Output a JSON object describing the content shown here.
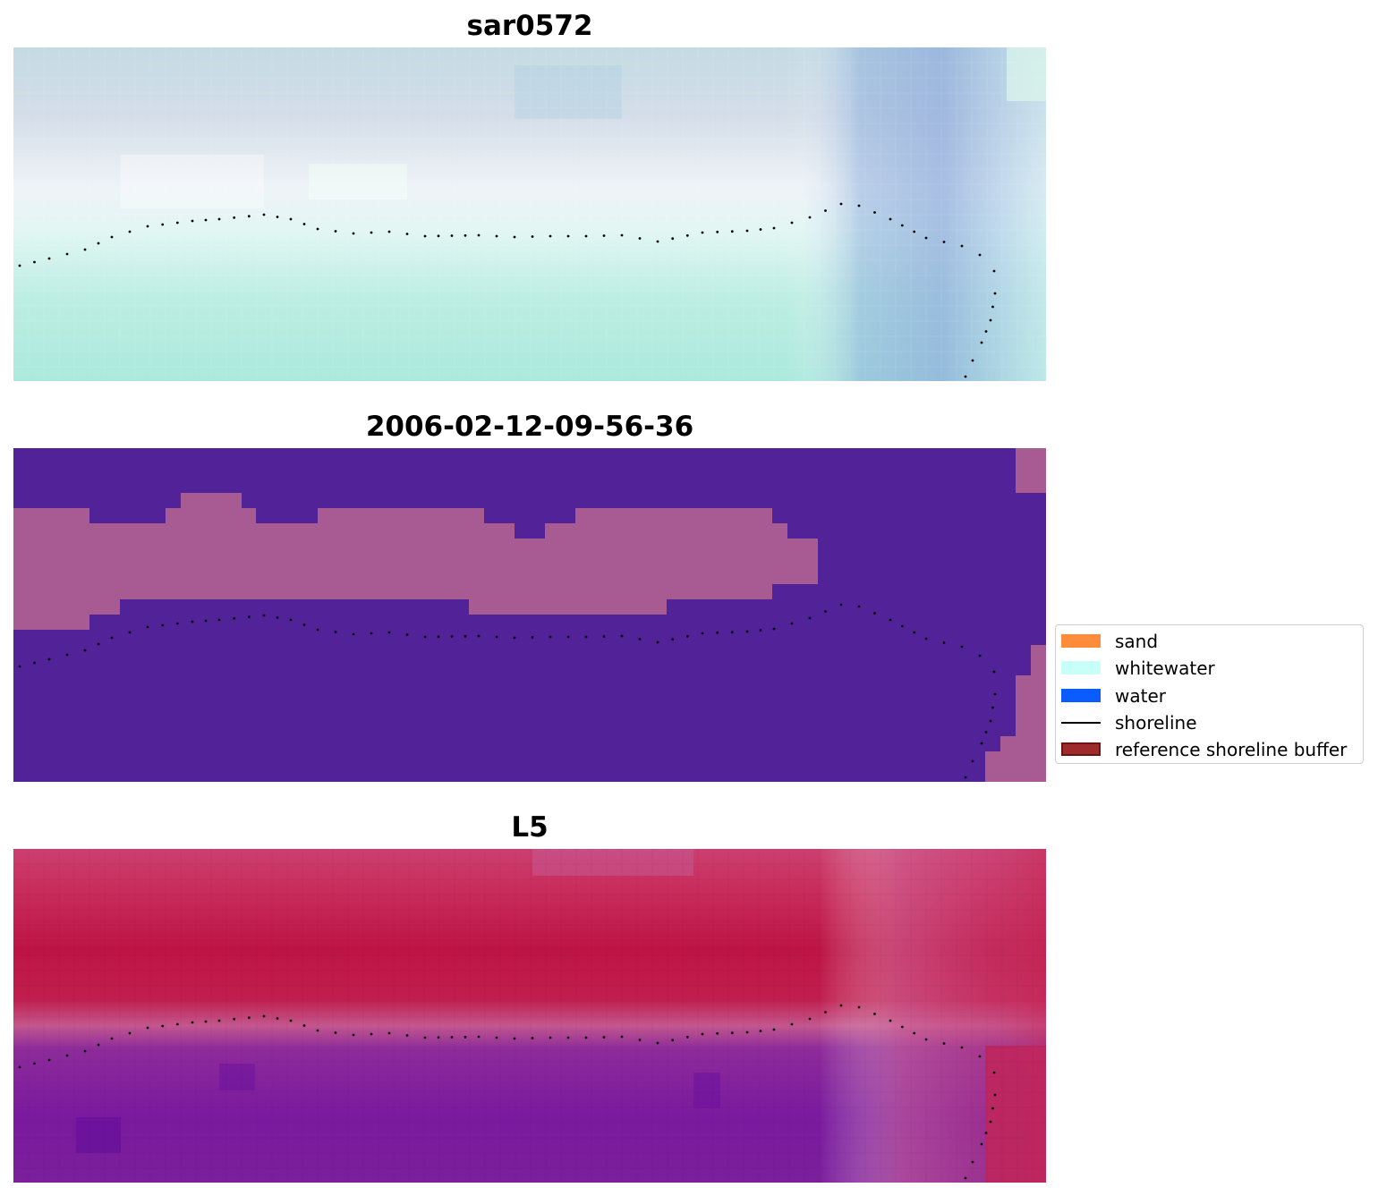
{
  "panels": [
    {
      "title": "sar0572",
      "image": "false-color-composite"
    },
    {
      "title": "2006-02-12-09-56-36",
      "image": "classified-image"
    },
    {
      "title": "L5",
      "image": "index-map"
    }
  ],
  "legend": {
    "items": [
      {
        "label": "sand",
        "color": "#ff8c3a",
        "kind": "patch"
      },
      {
        "label": "whitewater",
        "color": "#c8fff8",
        "kind": "patch"
      },
      {
        "label": "water",
        "color": "#0a5cff",
        "kind": "patch"
      },
      {
        "label": "shoreline",
        "color": "#000000",
        "kind": "line"
      },
      {
        "label": "reference shoreline buffer",
        "color": "#9e2b2b",
        "kind": "patch"
      }
    ]
  },
  "colors": {
    "classified_water": "#522299",
    "classified_buffer": "#a85a93",
    "shoreline_dots": "#000000"
  }
}
